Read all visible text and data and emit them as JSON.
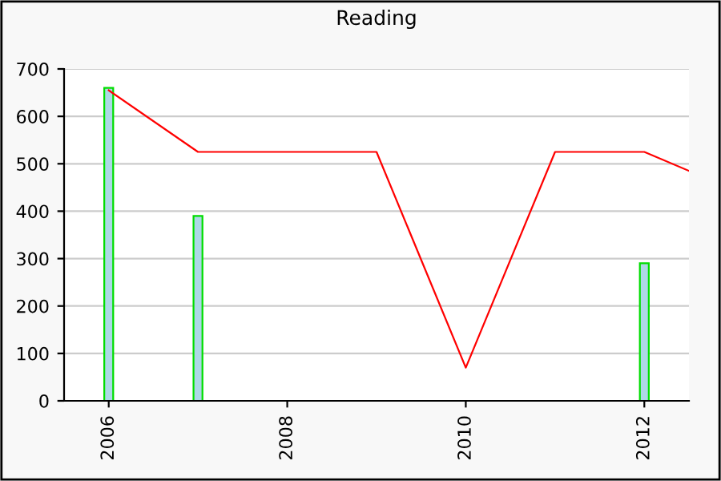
{
  "chart_data": {
    "type": "bar",
    "title": "Reading",
    "series": [
      {
        "color": "#add8e6",
        "x": [
          2006,
          2007,
          2012
        ],
        "values": [
          660,
          390,
          290
        ]
      },
      {
        "type": "line",
        "color": "#ff0000",
        "x": [
          2006,
          2007,
          2009,
          2010,
          2011,
          2012,
          2012.5
        ],
        "values": [
          655,
          525,
          525,
          70,
          525,
          525,
          485
        ]
      }
    ],
    "xlim": [
      2005.5,
      2012.5
    ],
    "xticks": [
      2006,
      2008,
      2010,
      2012
    ],
    "ylim": [
      0,
      700
    ],
    "yticks": [
      0,
      100,
      200,
      300,
      400,
      500,
      600,
      700
    ],
    "grid": "y",
    "marker": "none",
    "line_style": "solid"
  }
}
